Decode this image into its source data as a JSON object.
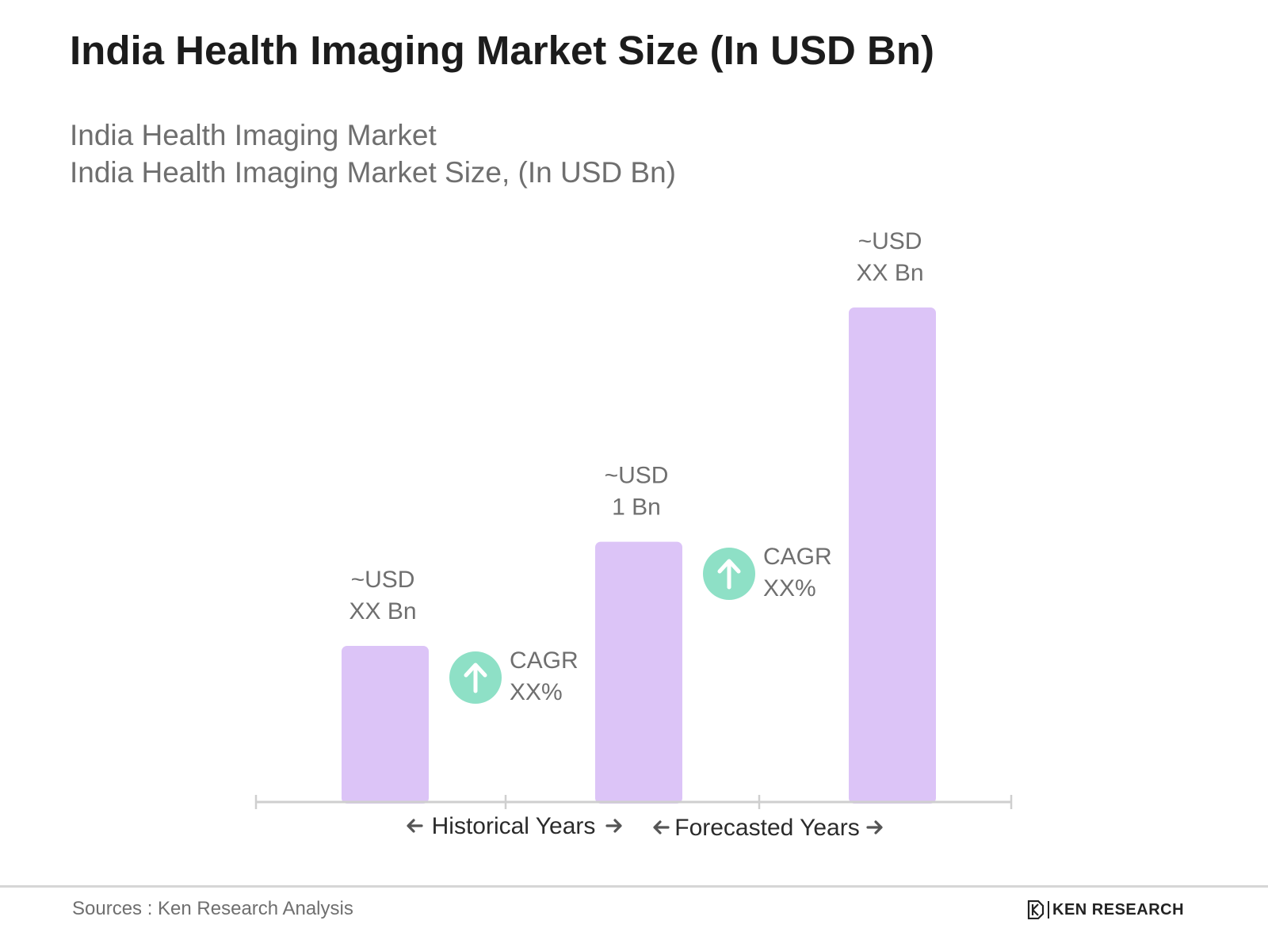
{
  "title": "India Health Imaging Market Size (In USD Bn)",
  "subtitle_line1": "India Health Imaging Market",
  "subtitle_line2": "India Health Imaging Market Size, (In USD Bn)",
  "source": "Sources : Ken Research Analysis",
  "brand": {
    "name": "KEN RESEARCH",
    "icon": "ken-research-logo-icon"
  },
  "colors": {
    "bar": "#dcc4f7",
    "cagr_circle": "#8ee0c6",
    "axis": "#cfcfcf",
    "label": "#6f6f6f",
    "period_label": "#2b2b2b"
  },
  "chart_data": {
    "type": "bar",
    "categories": [
      "",
      "",
      ""
    ],
    "values": [
      0.6,
      1,
      1.9
    ],
    "data_labels": [
      [
        "~USD",
        "XX Bn"
      ],
      [
        "~USD",
        "1 Bn"
      ],
      [
        "~USD",
        "XX Bn"
      ]
    ],
    "ylim": [
      0,
      2.5
    ],
    "grid": false,
    "cagr_annotations": [
      {
        "between": [
          0,
          1
        ],
        "line1": "CAGR",
        "line2": "XX%",
        "icon": "arrow-up-icon"
      },
      {
        "between": [
          1,
          2
        ],
        "line1": "CAGR",
        "line2": "XX%",
        "icon": "arrow-up-icon"
      }
    ],
    "periods": [
      {
        "label": "Historical Years",
        "left_arrow": "🡐",
        "right_arrow": "🡒"
      },
      {
        "label": "Forecasted Years",
        "left_arrow": "🡐",
        "right_arrow": "🡒"
      }
    ]
  }
}
